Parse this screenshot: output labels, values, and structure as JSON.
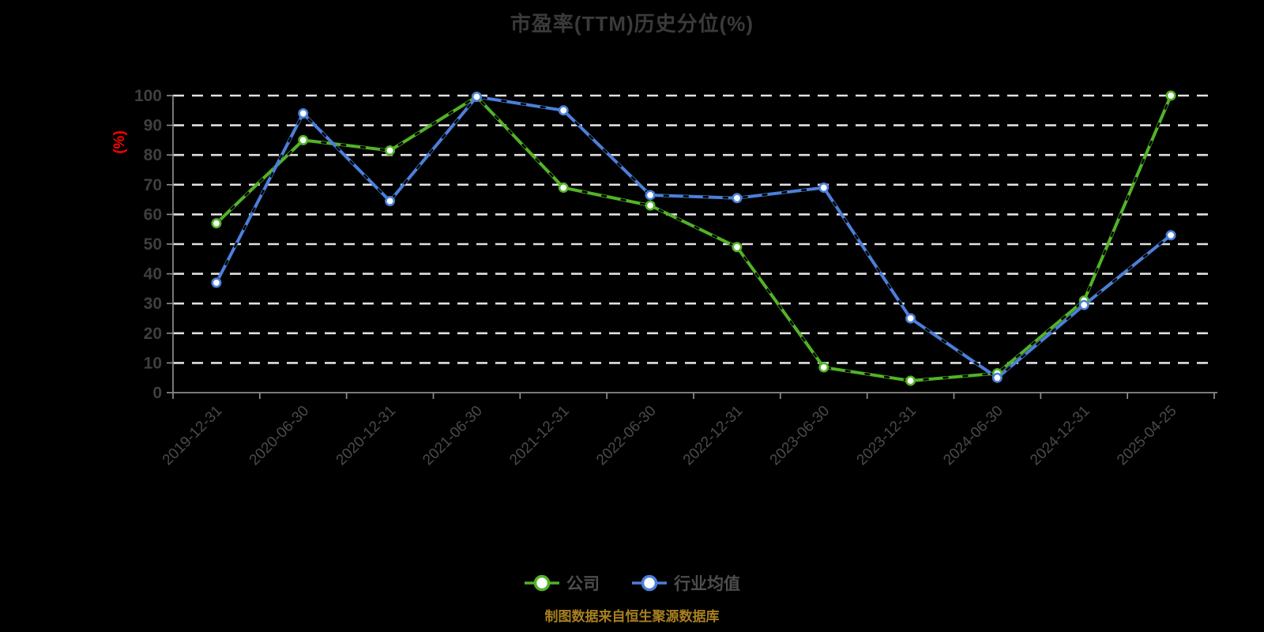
{
  "title": "市盈率(TTM)历史分位(%)",
  "source_note": "制图数据来自恒生聚源数据库",
  "colors": {
    "background": "#000000",
    "title": "#3a3a3a",
    "axis": "#8c8c8c",
    "grid": "#e0e0e0",
    "tick_label": "#3f3f3f",
    "date_label": "#4a4a4a",
    "legend_text": "#4d4d4d",
    "source_text": "#a9801f",
    "unit_label": "#ff0000",
    "company": "#52b327",
    "industry": "#4b80da",
    "marker_fill": "#ffffff",
    "dash_overlay": "#000000"
  },
  "chart_data": {
    "type": "line",
    "title": "市盈率(TTM)历史分位(%)",
    "ylabel": "(%)",
    "ylim": [
      0,
      100
    ],
    "ytick_interval": 10,
    "yticks": [
      0,
      10,
      20,
      30,
      40,
      50,
      60,
      70,
      80,
      90,
      100
    ],
    "grid": "horizontal-dashed-white",
    "legend_position": "bottom",
    "categories": [
      "2019-12-31",
      "2020-06-30",
      "2020-12-31",
      "2021-06-30",
      "2021-12-31",
      "2022-06-30",
      "2022-12-31",
      "2023-06-30",
      "2023-12-31",
      "2024-06-30",
      "2024-12-31",
      "2025-04-25"
    ],
    "series": [
      {
        "key": "company",
        "name": "公司",
        "color": "#52b327",
        "values": [
          57,
          85,
          81.5,
          99.6,
          69,
          63,
          49,
          8.5,
          4,
          6.5,
          31,
          100
        ]
      },
      {
        "key": "industry",
        "name": "行业均值",
        "color": "#4b80da",
        "values": [
          37,
          94,
          64.5,
          99.6,
          95,
          66.5,
          65.5,
          69,
          25,
          5,
          29.5,
          53
        ]
      }
    ]
  },
  "legend": {
    "items": [
      {
        "label": "公司",
        "icon": "line-circle-marker-green"
      },
      {
        "label": "行业均值",
        "icon": "line-circle-marker-blue"
      }
    ]
  }
}
